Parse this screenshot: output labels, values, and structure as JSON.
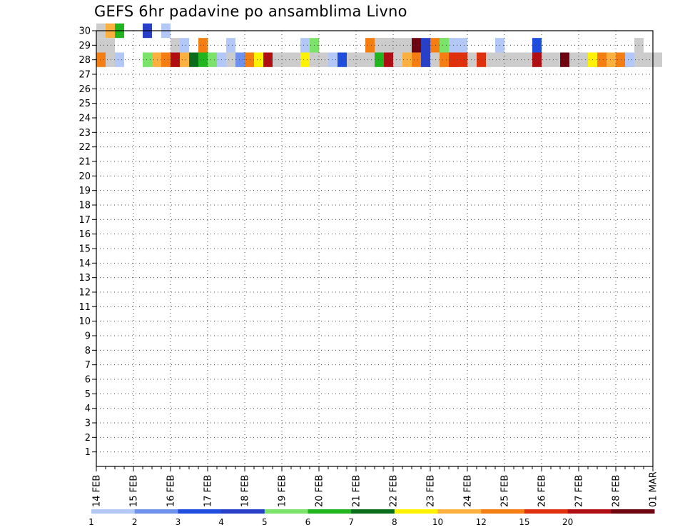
{
  "chart_data": {
    "type": "heatmap",
    "title": "GEFS 6hr padavine po ansamblima Livno",
    "x_tick_labels": [
      "14 FEB",
      "15 FEB",
      "16 FEB",
      "17 FEB",
      "18 FEB",
      "19 FEB",
      "20 FEB",
      "21 FEB",
      "22 FEB",
      "23 FEB",
      "24 FEB",
      "25 FEB",
      "26 FEB",
      "27 FEB",
      "28 FEB",
      "01 MAR"
    ],
    "x_unit": "6-hour step (4 per day)",
    "x_range": [
      0,
      60
    ],
    "y_tick_labels": [
      "1",
      "2",
      "3",
      "4",
      "5",
      "6",
      "7",
      "8",
      "9",
      "10",
      "11",
      "12",
      "13",
      "14",
      "15",
      "16",
      "17",
      "18",
      "19",
      "20",
      "21",
      "22",
      "23",
      "24",
      "25",
      "26",
      "27",
      "28",
      "29",
      "30"
    ],
    "y_range": [
      0,
      30
    ],
    "grid": true,
    "legend_position": "bottom",
    "legend_labels": [
      "1",
      "2",
      "3",
      "4",
      "5",
      "6",
      "7",
      "8",
      "10",
      "12",
      "15",
      "20"
    ],
    "legend_colors": [
      "#b3c8f6",
      "#6e91ee",
      "#1f4ddd",
      "#2840c8",
      "#7ce36a",
      "#21b520",
      "#0a6d1b",
      "#fff200",
      "#fbb040",
      "#f57e13",
      "#e0310e",
      "#b10e14",
      "#6e0410"
    ],
    "cells": [
      [
        30,
        0,
        18,
        1
      ],
      [
        30,
        1,
        8,
        1
      ],
      [
        30,
        2,
        5,
        1
      ],
      [
        30,
        5,
        3,
        1
      ],
      [
        30,
        7,
        0,
        1
      ],
      [
        29,
        0,
        29,
        2
      ],
      [
        29,
        8,
        23,
        1
      ],
      [
        29,
        9,
        0,
        1
      ],
      [
        29,
        11,
        9,
        1
      ],
      [
        29,
        14,
        0,
        1
      ],
      [
        29,
        22,
        0,
        1
      ],
      [
        29,
        23,
        4,
        1
      ],
      [
        29,
        29,
        9,
        2
      ],
      [
        29,
        30,
        16,
        2
      ],
      [
        29,
        31,
        27,
        1
      ],
      [
        29,
        32,
        24,
        1
      ],
      [
        29,
        33,
        18,
        1
      ],
      [
        29,
        34,
        12,
        1
      ],
      [
        29,
        35,
        3,
        1
      ],
      [
        29,
        36,
        9,
        2
      ],
      [
        29,
        37,
        4,
        1
      ],
      [
        29,
        38,
        0,
        1
      ],
      [
        29,
        39,
        0,
        1
      ],
      [
        29,
        43,
        0,
        1
      ],
      [
        29,
        47,
        2,
        1
      ],
      [
        29,
        58,
        30,
        1
      ],
      [
        28,
        0,
        9,
        1
      ],
      [
        28,
        1,
        13,
        1
      ],
      [
        28,
        2,
        0,
        1
      ],
      [
        28,
        5,
        4,
        1
      ],
      [
        28,
        6,
        8,
        1
      ],
      [
        28,
        7,
        9,
        2
      ],
      [
        28,
        8,
        11,
        1
      ],
      [
        28,
        9,
        8,
        1
      ],
      [
        28,
        10,
        6,
        1
      ],
      [
        28,
        11,
        5,
        1
      ],
      [
        28,
        12,
        4,
        1
      ],
      [
        28,
        13,
        0,
        1
      ],
      [
        28,
        14,
        28,
        3
      ],
      [
        28,
        15,
        1,
        1
      ],
      [
        28,
        16,
        9,
        2
      ],
      [
        28,
        17,
        7,
        1
      ],
      [
        28,
        18,
        11,
        1
      ],
      [
        28,
        19,
        18,
        1
      ],
      [
        28,
        20,
        24,
        1
      ],
      [
        28,
        21,
        26,
        1
      ],
      [
        28,
        22,
        7,
        1
      ],
      [
        28,
        23,
        24,
        1
      ],
      [
        28,
        24,
        24,
        1
      ],
      [
        28,
        25,
        0,
        1
      ],
      [
        28,
        26,
        2,
        1
      ],
      [
        28,
        27,
        28,
        1
      ],
      [
        28,
        28,
        13,
        1
      ],
      [
        28,
        29,
        15,
        1
      ],
      [
        28,
        30,
        5,
        1
      ],
      [
        28,
        31,
        11,
        2
      ],
      [
        28,
        32,
        13,
        1
      ],
      [
        28,
        33,
        8,
        1
      ],
      [
        28,
        34,
        9,
        2
      ],
      [
        28,
        35,
        3,
        1
      ],
      [
        28,
        36,
        29,
        3
      ],
      [
        28,
        37,
        9,
        2
      ],
      [
        28,
        38,
        10,
        1
      ],
      [
        28,
        39,
        10,
        1
      ],
      [
        28,
        40,
        14,
        1
      ],
      [
        28,
        41,
        10,
        1
      ],
      [
        28,
        42,
        15,
        1
      ],
      [
        28,
        43,
        14,
        1
      ],
      [
        28,
        44,
        13,
        1
      ],
      [
        28,
        45,
        14,
        1
      ],
      [
        28,
        46,
        27,
        1
      ],
      [
        28,
        47,
        11,
        1
      ],
      [
        28,
        48,
        21,
        1
      ],
      [
        28,
        49,
        14,
        1
      ],
      [
        28,
        50,
        12,
        1
      ],
      [
        28,
        51,
        29,
        3
      ],
      [
        28,
        52,
        14,
        1
      ],
      [
        28,
        53,
        7,
        1
      ],
      [
        28,
        54,
        9,
        2
      ],
      [
        28,
        55,
        8,
        2
      ],
      [
        28,
        56,
        9,
        2
      ],
      [
        28,
        57,
        0,
        1
      ],
      [
        28,
        58,
        29,
        3
      ],
      [
        28,
        59,
        27,
        1
      ]
    ]
  }
}
